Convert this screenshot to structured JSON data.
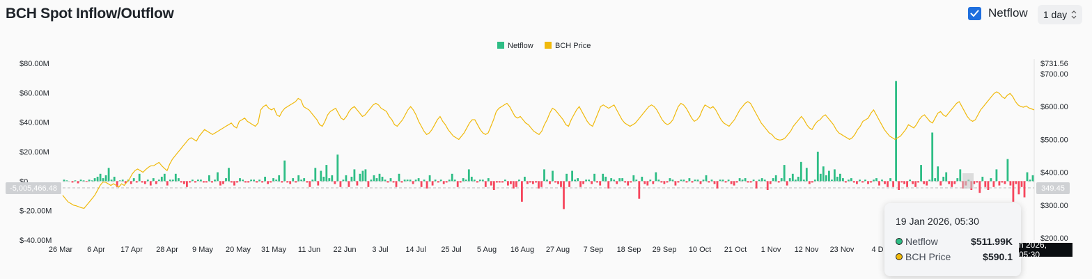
{
  "title": "BCH Spot Inflow/Outflow",
  "controls": {
    "netflow_toggle_label": "Netflow",
    "netflow_checked": true,
    "interval": "1 day"
  },
  "colors": {
    "positive": "#2ebd85",
    "negative": "#f6465d",
    "price": "#f0b90b",
    "legend_netflow": "#2ebd85",
    "legend_price": "#f0b90b"
  },
  "crosshair": {
    "left_value": "-5,005,466.48",
    "right_value": "349.45",
    "x_label": "n 2026, 05:30"
  },
  "tooltip": {
    "date": "19 Jan 2026, 05:30",
    "rows": [
      {
        "label": "Netflow",
        "value": "$511.99K",
        "color": "#2ebd85"
      },
      {
        "label": "BCH Price",
        "value": "$590.1",
        "color": "#f0b90b"
      }
    ]
  },
  "chart_data": {
    "type": "bar",
    "legend": [
      {
        "name": "Netflow",
        "color": "#2ebd85"
      },
      {
        "name": "BCH Price",
        "color": "#f0b90b"
      }
    ],
    "legend_position": "top-center",
    "grid": false,
    "x_ticks": [
      "26 Mar",
      "6 Apr",
      "17 Apr",
      "28 Apr",
      "9 May",
      "20 May",
      "31 May",
      "11 Jun",
      "22 Jun",
      "3 Jul",
      "14 Jul",
      "25 Jul",
      "5 Aug",
      "16 Aug",
      "27 Aug",
      "7 Sep",
      "18 Sep",
      "29 Sep",
      "10 Oct",
      "21 Oct",
      "1 Nov",
      "12 Nov",
      "23 Nov",
      "4 D"
    ],
    "y_left": {
      "ticks": [
        "$80.00M",
        "$60.00M",
        "$40.00M",
        "$20.00M",
        "$0",
        "$-20.00M",
        "$-40.00M"
      ],
      "range": [
        -40,
        80
      ],
      "unit": "M USD"
    },
    "y_right": {
      "ticks": [
        "$731.56",
        "$700.00",
        "$600.00",
        "$500.00",
        "$400.00",
        "$300.00",
        "$200.00"
      ],
      "range": [
        200,
        731.56
      ]
    },
    "series": [
      {
        "name": "Netflow",
        "kind": "bar",
        "values": [
          1,
          0.5,
          0,
          -1,
          0.5,
          -1.5,
          1,
          0.5,
          -0.5,
          1,
          0.5,
          2,
          3,
          5,
          2,
          4,
          9,
          1,
          3,
          -4,
          0.5,
          1,
          -1.5,
          1,
          -2,
          2,
          -1,
          5,
          -1,
          -2,
          1,
          -3,
          2,
          -2,
          1,
          3,
          5,
          -3,
          1,
          1,
          5,
          2,
          -1,
          -2,
          -4,
          -1,
          1,
          -1,
          1,
          1,
          -1,
          -1,
          4,
          -1,
          1,
          6,
          -3,
          -2,
          2,
          9,
          -1,
          -3,
          -1,
          2,
          1,
          -1,
          -1,
          1,
          1,
          -1,
          1,
          -1,
          3,
          -2,
          -1,
          2,
          1,
          4,
          -1,
          14,
          -1,
          -2,
          2,
          -1,
          4,
          1,
          2,
          -1,
          -4,
          1,
          9,
          -3,
          7,
          3,
          11,
          2,
          4,
          -2,
          18,
          -4,
          1,
          4,
          -4,
          3,
          8,
          -3,
          5,
          7,
          8,
          -4,
          1,
          4,
          2,
          5,
          3,
          1,
          -1,
          2,
          -1,
          -4,
          5,
          -1,
          1,
          1,
          1,
          -2,
          1,
          2,
          -4,
          1,
          -5,
          4,
          -3,
          1,
          -1,
          1,
          -2,
          -1,
          1,
          5,
          1,
          -4,
          -1,
          2,
          1,
          8,
          3,
          1,
          -1,
          1,
          1,
          -4,
          2,
          -3,
          -6,
          -1,
          -1,
          -1,
          1,
          -3,
          -2,
          -5,
          -4,
          1,
          -14,
          3,
          -2,
          -1,
          -2,
          -1,
          -5,
          -4,
          8,
          1,
          -2,
          7,
          -1,
          -2,
          -4,
          -19,
          5,
          -4,
          7,
          1,
          2,
          -4,
          -2,
          1,
          1,
          -2,
          5,
          -1,
          -3,
          5,
          3,
          -5,
          2,
          1,
          -2,
          2,
          2,
          -1,
          -3,
          -1,
          4,
          1,
          -12,
          3,
          -2,
          -3,
          1,
          -2,
          6,
          1,
          -1,
          -2,
          -1,
          2,
          1,
          -3,
          -1,
          1,
          1,
          -1,
          2,
          -1,
          1,
          1,
          -2,
          1,
          4,
          -1,
          1,
          -2,
          -5,
          1,
          1,
          -1,
          1,
          -2,
          -3,
          -1,
          2,
          1,
          2,
          -1,
          -1,
          1,
          -5,
          1,
          2,
          1,
          -6,
          -2,
          2,
          4,
          -1,
          2,
          11,
          -3,
          2,
          5,
          1,
          3,
          13,
          1,
          9,
          -2,
          -1,
          1,
          20,
          5,
          10,
          4,
          7,
          1,
          8,
          3,
          5,
          2,
          -1,
          1,
          2,
          -1,
          -2,
          1,
          -1,
          1,
          -2,
          -1,
          1,
          2,
          -3,
          1,
          -2,
          -4,
          2,
          -4,
          68,
          -6,
          -1,
          -2,
          -4,
          1,
          -2,
          -4,
          -1,
          11,
          -2,
          -3,
          1,
          33,
          2,
          10,
          -3,
          3,
          6,
          -2,
          -4,
          -2,
          2,
          8,
          -5,
          -3,
          1,
          -6,
          -2,
          -1,
          -8,
          3,
          -4,
          -6,
          2,
          -4,
          8,
          -3,
          -1,
          -2,
          15,
          -3,
          -14,
          -2,
          -9,
          -4,
          -11,
          6,
          1,
          4
        ]
      },
      {
        "name": "BCH Price",
        "kind": "line",
        "axis": "right",
        "values": [
          330,
          320,
          310,
          305,
          300,
          298,
          295,
          292,
          290,
          300,
          310,
          320,
          330,
          345,
          360,
          370,
          370,
          365,
          360,
          365,
          360,
          355,
          365,
          360,
          370,
          380,
          395,
          405,
          410,
          405,
          400,
          408,
          415,
          420,
          420,
          425,
          430,
          420,
          412,
          405,
          425,
          440,
          450,
          460,
          470,
          480,
          490,
          500,
          505,
          500,
          495,
          510,
          520,
          530,
          525,
          520,
          515,
          520,
          525,
          530,
          535,
          540,
          545,
          550,
          540,
          535,
          555,
          560,
          565,
          555,
          550,
          545,
          540,
          550,
          590,
          600,
          605,
          595,
          590,
          595,
          575,
          570,
          585,
          595,
          600,
          605,
          610,
          615,
          625,
          620,
          600,
          595,
          590,
          580,
          570,
          560,
          545,
          540,
          555,
          575,
          585,
          590,
          595,
          580,
          565,
          560,
          570,
          585,
          595,
          600,
          590,
          580,
          570,
          575,
          585,
          595,
          605,
          610,
          605,
          595,
          590,
          585,
          570,
          560,
          545,
          540,
          550,
          560,
          575,
          590,
          600,
          590,
          575,
          555,
          540,
          525,
          515,
          520,
          530,
          545,
          560,
          570,
          555,
          545,
          530,
          520,
          510,
          505,
          500,
          510,
          520,
          535,
          550,
          560,
          560,
          545,
          530,
          520,
          515,
          520,
          540,
          560,
          585,
          595,
          600,
          605,
          610,
          600,
          585,
          570,
          565,
          570,
          560,
          550,
          545,
          535,
          525,
          520,
          515,
          525,
          545,
          560,
          580,
          595,
          590,
          580,
          570,
          560,
          545,
          540,
          560,
          575,
          590,
          600,
          585,
          570,
          555,
          545,
          540,
          560,
          580,
          600,
          605,
          600,
          595,
          600,
          605,
          590,
          575,
          560,
          550,
          545,
          540,
          545,
          550,
          560,
          570,
          580,
          590,
          600,
          605,
          600,
          590,
          575,
          560,
          550,
          545,
          550,
          560,
          580,
          600,
          610,
          605,
          595,
          580,
          565,
          555,
          560,
          570,
          590,
          605,
          600,
          595,
          600,
          590,
          575,
          560,
          550,
          545,
          540,
          550,
          560,
          575,
          590,
          600,
          610,
          615,
          610,
          595,
          580,
          565,
          550,
          540,
          530,
          520,
          515,
          505,
          500,
          498,
          500,
          505,
          515,
          525,
          540,
          550,
          560,
          570,
          560,
          545,
          535,
          530,
          545,
          555,
          560,
          570,
          575,
          565,
          555,
          545,
          530,
          520,
          515,
          510,
          505,
          500,
          505,
          515,
          530,
          540,
          555,
          560,
          565,
          580,
          590,
          575,
          560,
          545,
          530,
          520,
          510,
          505,
          500,
          505,
          510,
          520,
          530,
          545,
          540,
          535,
          545,
          560,
          570,
          575,
          565,
          555,
          550,
          565,
          580,
          585,
          575,
          570,
          580,
          590,
          600,
          610,
          615,
          600,
          585,
          570,
          560,
          555,
          560,
          575,
          590,
          600,
          610,
          620,
          630,
          640,
          645,
          640,
          630,
          625,
          635,
          640,
          630,
          615,
          605,
          600,
          598,
          602,
          596,
          593,
          590
        ]
      }
    ]
  }
}
